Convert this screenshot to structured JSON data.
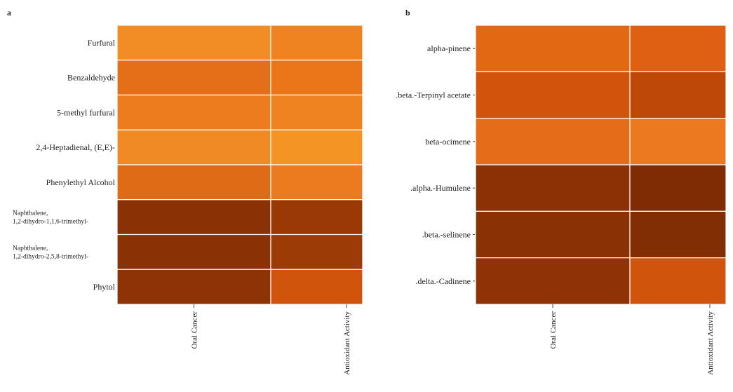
{
  "chart_data": [
    {
      "type": "heatmap",
      "panel": "a",
      "columns": [
        "Oral Cancer",
        "Antioxidant Activity"
      ],
      "rows": [
        "Furfural",
        "Benzaldehyde",
        "5-methyl furfural",
        "2,4-Heptadienal, (E,E)-",
        "Phenylethyl Alcohol",
        "Naphthalene, 1,2-dihydro-1,1,6-trimethyl-",
        "Naphthalene, 1,2-dihydro-2,5,8-trimethyl-",
        "Phytol"
      ],
      "cell_colors": [
        [
          "#f18d24",
          "#ef8322"
        ],
        [
          "#e56e18",
          "#ea7619"
        ],
        [
          "#ec7c1d",
          "#ef8322"
        ],
        [
          "#f08a24",
          "#f39425"
        ],
        [
          "#e06b16",
          "#eb7b1e"
        ],
        [
          "#8a3106",
          "#9a3905"
        ],
        [
          "#8a3106",
          "#9c3b05"
        ],
        [
          "#8e3306",
          "#d0540c"
        ]
      ]
    },
    {
      "type": "heatmap",
      "panel": "b",
      "columns": [
        "Oral Cancer",
        "Antioxidant Activity"
      ],
      "rows": [
        "alpha-pinene",
        ".beta.-Terpinyl acetate",
        "beta-ocimene",
        ".alpha.-Humulene",
        ".beta.-selinene",
        ".delta.-Cadinene"
      ],
      "cell_colors": [
        [
          "#e26814",
          "#df6012"
        ],
        [
          "#d2540c",
          "#be4807"
        ],
        [
          "#e56c18",
          "#ec7920"
        ],
        [
          "#8c3106",
          "#7f2c05"
        ],
        [
          "#8a3106",
          "#812e05"
        ],
        [
          "#8f3306",
          "#d0540c"
        ]
      ]
    }
  ]
}
